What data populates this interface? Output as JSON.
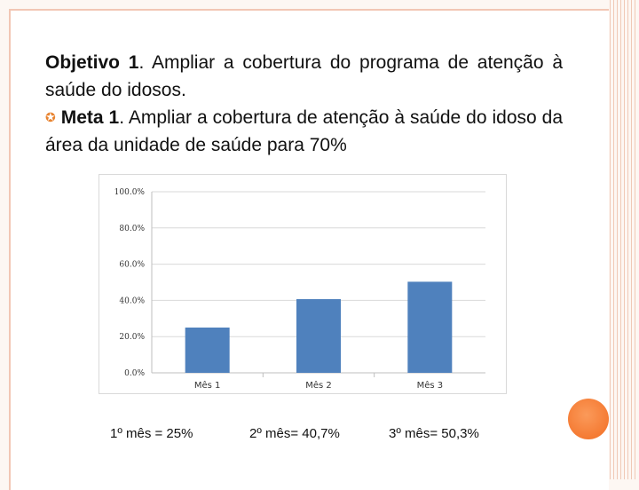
{
  "objective": {
    "label": "Objetivo 1",
    "text": ". Ampliar a cobertura do programa de atenção à saúde do idosos."
  },
  "goal": {
    "label": "Meta 1",
    "text": ". Ampliar a cobertura de atenção à saúde do idoso da área da unidade de saúde para 70%"
  },
  "colors": {
    "bar": "#4f81bd",
    "accent": "#f26d22",
    "bullet": "#e8832f"
  },
  "chart_data": {
    "type": "bar",
    "categories": [
      "Mês 1",
      "Mês 2",
      "Mês 3"
    ],
    "values": [
      25.0,
      40.7,
      50.3
    ],
    "ylim": [
      0,
      100
    ],
    "yticks": [
      "0.0%",
      "20.0%",
      "40.0%",
      "60.0%",
      "80.0%",
      "100.0%"
    ],
    "grid": true,
    "title": "",
    "xlabel": "",
    "ylabel": ""
  },
  "captions": [
    "1º mês = 25%",
    "2º mês= 40,7%",
    "3º mês= 50,3%"
  ]
}
